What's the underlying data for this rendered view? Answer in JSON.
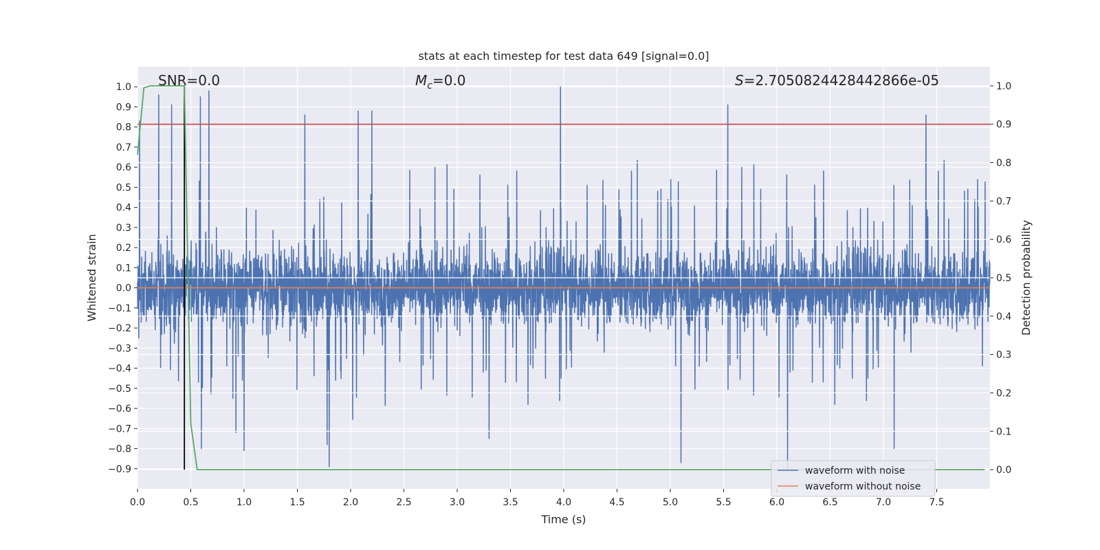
{
  "chart_data": {
    "type": "line",
    "title": "stats at each timestep for test data 649 [signal=0.0]",
    "xlabel": "Time (s)",
    "ylabel_left": "Whitened strain",
    "ylabel_right": "Detection probability",
    "xlim": [
      0.0,
      8.0
    ],
    "ylim_left": [
      -1.0,
      1.1
    ],
    "ylim_right": [
      -0.05,
      1.05
    ],
    "xticks": [
      "0.0",
      "0.5",
      "1.0",
      "1.5",
      "2.0",
      "2.5",
      "3.0",
      "3.5",
      "4.0",
      "4.5",
      "5.0",
      "5.5",
      "6.0",
      "6.5",
      "7.0",
      "7.5"
    ],
    "xtick_values": [
      0.0,
      0.5,
      1.0,
      1.5,
      2.0,
      2.5,
      3.0,
      3.5,
      4.0,
      4.5,
      5.0,
      5.5,
      6.0,
      6.5,
      7.0,
      7.5
    ],
    "yticks_left": [
      "1.0",
      "0.9",
      "0.8",
      "0.7",
      "0.6",
      "0.5",
      "0.4",
      "0.3",
      "0.2",
      "0.1",
      "0.0",
      "−0.1",
      "−0.2",
      "−0.3",
      "−0.4",
      "−0.5",
      "−0.6",
      "−0.7",
      "−0.8",
      "−0.9"
    ],
    "ytick_values_left": [
      1.0,
      0.9,
      0.8,
      0.7,
      0.6,
      0.5,
      0.4,
      0.3,
      0.2,
      0.1,
      0.0,
      -0.1,
      -0.2,
      -0.3,
      -0.4,
      -0.5,
      -0.6,
      -0.7,
      -0.8,
      -0.9
    ],
    "yticks_right": [
      "1.0",
      "0.9",
      "0.8",
      "0.7",
      "0.6",
      "0.5",
      "0.4",
      "0.3",
      "0.2",
      "0.1",
      "0.0"
    ],
    "ytick_values_right": [
      1.0,
      0.9,
      0.8,
      0.7,
      0.6,
      0.5,
      0.4,
      0.3,
      0.2,
      0.1,
      0.0
    ],
    "annotations": {
      "snr": "SNR=0.0",
      "mc_symbol": "M",
      "mc_sub": "c",
      "mc_value": "=0.0",
      "s_symbol": "S",
      "s_value": "=2.7050824428442866e-05"
    },
    "series": [
      {
        "name": "waveform with noise",
        "axis": "left",
        "color": "#4c72b0",
        "description": "noise waveform, dense band approx -0.5 to 0.45 with spikes",
        "sample_count": 4096,
        "peaks": [
          {
            "t": 0.02,
            "v": 0.83
          },
          {
            "t": 0.2,
            "v": 0.96
          },
          {
            "t": 0.32,
            "v": 0.91
          },
          {
            "t": 0.59,
            "v": 0.95
          },
          {
            "t": 0.67,
            "v": 0.98
          },
          {
            "t": 1.57,
            "v": 0.86
          },
          {
            "t": 2.07,
            "v": 0.88
          },
          {
            "t": 2.2,
            "v": 0.88
          },
          {
            "t": 3.97,
            "v": 1.0
          },
          {
            "t": 5.54,
            "v": 0.91
          },
          {
            "t": 7.4,
            "v": 0.86
          }
        ],
        "troughs": [
          {
            "t": 1.8,
            "v": -0.89
          },
          {
            "t": 6.1,
            "v": -0.9
          },
          {
            "t": 5.1,
            "v": -0.87
          },
          {
            "t": 1.78,
            "v": -0.78
          },
          {
            "t": 1.0,
            "v": -0.81
          },
          {
            "t": 0.6,
            "v": -0.8
          },
          {
            "t": 7.1,
            "v": -0.8
          },
          {
            "t": 3.3,
            "v": -0.75
          }
        ]
      },
      {
        "name": "waveform without noise",
        "axis": "left",
        "color": "#dd8452",
        "x": [
          0.0,
          8.0
        ],
        "y": [
          0.0,
          0.0
        ]
      },
      {
        "name": "detection probability",
        "axis": "right",
        "color": "#55a868",
        "x": [
          0.0,
          0.06,
          0.12,
          0.44,
          0.5,
          0.56,
          7.95
        ],
        "y": [
          0.82,
          0.995,
          1.0,
          1.0,
          0.12,
          0.0,
          0.0
        ]
      }
    ],
    "threshold": {
      "axis": "right",
      "value": 0.9,
      "color": "#c44e52"
    },
    "vertical_marker": {
      "x": 0.44,
      "color": "#000000"
    },
    "legend": {
      "location": "lower-right",
      "entries": [
        {
          "label": "waveform with noise",
          "color": "#4c72b0"
        },
        {
          "label": "waveform without noise",
          "color": "#dd8452"
        }
      ]
    },
    "grid": true,
    "background": "#eaeaf2"
  }
}
